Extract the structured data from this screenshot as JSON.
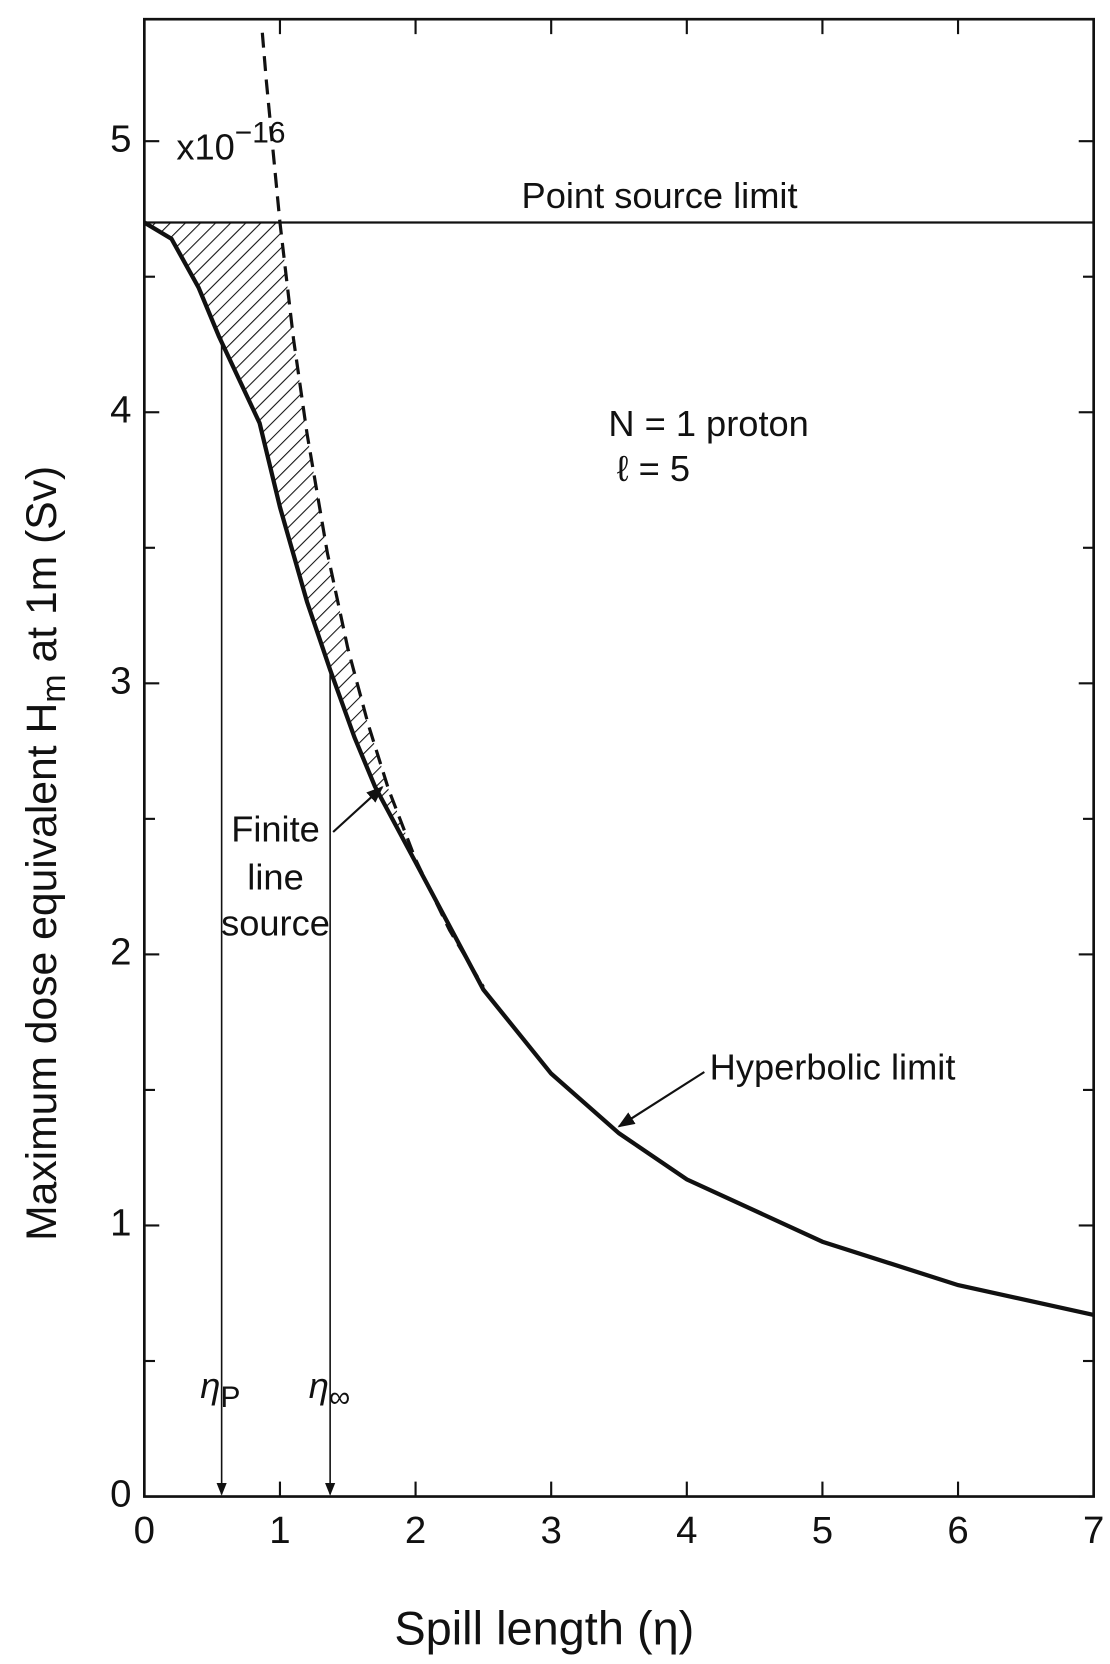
{
  "chart_data": {
    "type": "line",
    "x_label": "Spill length (η)",
    "y_label": {
      "main": "Maximum dose equivalent  H",
      "sub": "m",
      "rest": " at 1m (Sv)"
    },
    "xlim": [
      0,
      7
    ],
    "xticks": [
      0,
      1,
      2,
      3,
      4,
      5,
      6,
      7
    ],
    "ylim": [
      0,
      5.45
    ],
    "yticks": [
      0,
      1,
      2,
      3,
      4,
      5
    ],
    "yminorticks": [
      0.5,
      1.5,
      2.5,
      3.5,
      4.5
    ],
    "series": [
      {
        "name": "Point source limit",
        "color": "#111",
        "style": "solid",
        "x": [
          0,
          7
        ],
        "values": [
          4.7,
          4.7
        ]
      },
      {
        "name": "Hyperbolic limit",
        "color": "#111",
        "style": "dashed",
        "x": [
          0.87,
          0.9,
          1,
          1.1,
          1.2,
          1.35,
          1.5,
          1.65,
          1.8,
          2,
          2.25,
          2.5
        ],
        "values": [
          5.4,
          5.22,
          4.7,
          4.27,
          3.92,
          3.48,
          3.13,
          2.85,
          2.61,
          2.35,
          2.09,
          1.88
        ]
      },
      {
        "color": "#111",
        "style": "solid",
        "x": [
          0,
          0.2,
          0.4,
          0.55,
          0.7,
          0.85,
          1,
          1.2,
          1.37,
          1.55,
          1.7,
          2,
          2.5,
          3,
          3.5,
          4,
          5,
          6,
          7
        ],
        "values": [
          4.7,
          4.64,
          4.46,
          4.28,
          4.12,
          3.96,
          3.65,
          3.3,
          3.05,
          2.8,
          2.62,
          2.34,
          1.87,
          1.56,
          1.34,
          1.17,
          0.94,
          0.78,
          0.67
        ]
      }
    ],
    "scale_note": {
      "base": "x10",
      "exp": "−16"
    },
    "params": [
      "N = 1 proton",
      "ℓ = 5"
    ],
    "finite_label": [
      "Finite",
      "line",
      "source"
    ],
    "markers": [
      {
        "symbol": "η",
        "sub": "P",
        "x": 0.57,
        "y": 4.28
      },
      {
        "symbol": "η",
        "sub": "∞",
        "x": 1.37,
        "y": 3.05
      }
    ]
  }
}
